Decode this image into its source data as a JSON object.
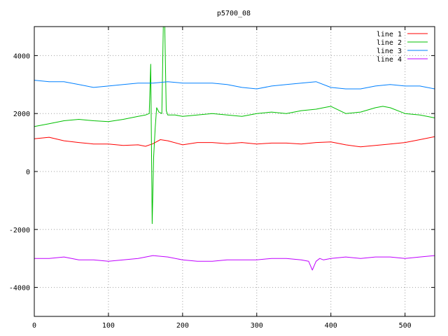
{
  "chart_data": {
    "type": "line",
    "title": "p5700_08",
    "xlabel": "",
    "ylabel": "",
    "xlim": [
      0,
      540
    ],
    "ylim": [
      -5000,
      5000
    ],
    "x_ticks": [
      0,
      100,
      200,
      300,
      400,
      500
    ],
    "y_ticks": [
      -4000,
      -2000,
      0,
      2000,
      4000
    ],
    "grid": true,
    "legend_position": "top-right",
    "series": [
      {
        "name": "line 1",
        "color": "#ff0000",
        "x": [
          0,
          20,
          40,
          60,
          80,
          100,
          120,
          140,
          150,
          160,
          170,
          180,
          200,
          220,
          240,
          260,
          280,
          300,
          320,
          340,
          360,
          380,
          400,
          420,
          440,
          460,
          480,
          500,
          520,
          540
        ],
        "y": [
          1130,
          1180,
          1060,
          1000,
          950,
          950,
          900,
          920,
          870,
          960,
          1100,
          1060,
          920,
          1000,
          1000,
          960,
          1000,
          950,
          980,
          980,
          950,
          1000,
          1020,
          920,
          850,
          900,
          950,
          1000,
          1100,
          1200
        ]
      },
      {
        "name": "line 2",
        "color": "#00c000",
        "x": [
          0,
          20,
          40,
          60,
          80,
          100,
          120,
          140,
          150,
          155,
          157,
          159,
          161,
          163,
          165,
          168,
          172,
          174,
          176,
          178,
          180,
          190,
          200,
          220,
          240,
          260,
          280,
          300,
          320,
          340,
          360,
          380,
          390,
          400,
          420,
          440,
          460,
          470,
          480,
          500,
          520,
          540
        ],
        "y": [
          1550,
          1650,
          1750,
          1800,
          1750,
          1720,
          1800,
          1900,
          1950,
          2000,
          3700,
          -1800,
          500,
          1500,
          2200,
          2050,
          2000,
          5000,
          5000,
          2100,
          1950,
          1950,
          1900,
          1950,
          2000,
          1950,
          1900,
          2000,
          2050,
          2000,
          2100,
          2150,
          2200,
          2250,
          2000,
          2050,
          2200,
          2250,
          2200,
          2000,
          1950,
          1850
        ]
      },
      {
        "name": "line 3",
        "color": "#0080ff",
        "x": [
          0,
          20,
          40,
          60,
          80,
          100,
          120,
          140,
          160,
          180,
          200,
          220,
          240,
          260,
          280,
          300,
          320,
          340,
          360,
          380,
          400,
          420,
          440,
          460,
          480,
          500,
          520,
          540
        ],
        "y": [
          3150,
          3100,
          3100,
          3000,
          2900,
          2950,
          3000,
          3050,
          3050,
          3100,
          3050,
          3050,
          3050,
          3000,
          2900,
          2850,
          2950,
          3000,
          3050,
          3100,
          2900,
          2850,
          2850,
          2950,
          3000,
          2950,
          2950,
          2850
        ]
      },
      {
        "name": "line 4",
        "color": "#c000ff",
        "x": [
          0,
          20,
          40,
          60,
          80,
          100,
          120,
          140,
          160,
          180,
          200,
          220,
          240,
          260,
          280,
          300,
          320,
          340,
          360,
          370,
          375,
          380,
          385,
          390,
          400,
          420,
          440,
          460,
          480,
          500,
          520,
          540
        ],
        "y": [
          -3000,
          -3000,
          -2950,
          -3050,
          -3050,
          -3100,
          -3050,
          -3000,
          -2900,
          -2950,
          -3050,
          -3100,
          -3100,
          -3050,
          -3050,
          -3050,
          -3000,
          -3000,
          -3050,
          -3100,
          -3400,
          -3100,
          -3000,
          -3050,
          -3000,
          -2950,
          -3000,
          -2950,
          -2950,
          -3000,
          -2950,
          -2900
        ]
      }
    ]
  }
}
